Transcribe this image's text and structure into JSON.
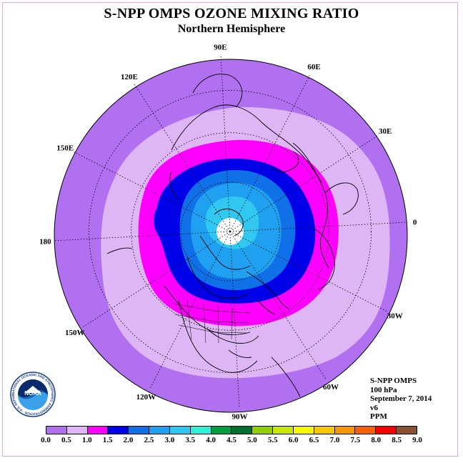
{
  "title": "S-NPP OMPS OZONE MIXING RATIO",
  "subtitle": "Northern Hemisphere",
  "longitude_labels": [
    {
      "label": "90E",
      "lon": 90
    },
    {
      "label": "60E",
      "lon": 60
    },
    {
      "label": "30E",
      "lon": 30
    },
    {
      "label": "0",
      "lon": 0
    },
    {
      "label": "30W",
      "lon": -30
    },
    {
      "label": "60W",
      "lon": -60
    },
    {
      "label": "90W",
      "lon": -90
    },
    {
      "label": "120W",
      "lon": -120
    },
    {
      "label": "150W",
      "lon": -150
    },
    {
      "label": "180",
      "lon": 180
    },
    {
      "label": "150E",
      "lon": 150
    },
    {
      "label": "120E",
      "lon": 120
    }
  ],
  "info": {
    "instrument": "S-NPP OMPS",
    "level": "100 hPa",
    "date": "September 7, 2014",
    "version": "v6",
    "units": "PPM"
  },
  "colorbar": {
    "ticks": [
      "0.0",
      "0.5",
      "1.0",
      "1.5",
      "2.0",
      "2.5",
      "3.0",
      "3.5",
      "4.0",
      "4.5",
      "5.0",
      "5.5",
      "6.0",
      "6.5",
      "7.0",
      "7.5",
      "8.0",
      "8.5",
      "9.0"
    ],
    "colors": [
      "#b070f0",
      "#deb6f6",
      "#ff00ff",
      "#0000e8",
      "#1070e8",
      "#20a0f0",
      "#30c8f0",
      "#30f0d8",
      "#00a040",
      "#007030",
      "#90d000",
      "#c8e800",
      "#f8f800",
      "#f8c800",
      "#f89800",
      "#f86000",
      "#f80000",
      "#8b5030"
    ]
  },
  "field_colors": {
    "background": "#b070f0",
    "band_0_5": "#deb6f6",
    "band_1_0": "#ff00ff",
    "band_1_5": "#0000e8",
    "band_2_0": "#1070e8",
    "band_2_5": "#20a0f0",
    "band_3_0": "#30c8f0",
    "no_data": "#ffffff"
  },
  "logo": {
    "center_text": "NOAA",
    "ring_text": "NATIONAL OCEANIC AND ATMOSPHERIC ADMINISTRATION · U.S. DEPARTMENT OF COMMERCE"
  }
}
